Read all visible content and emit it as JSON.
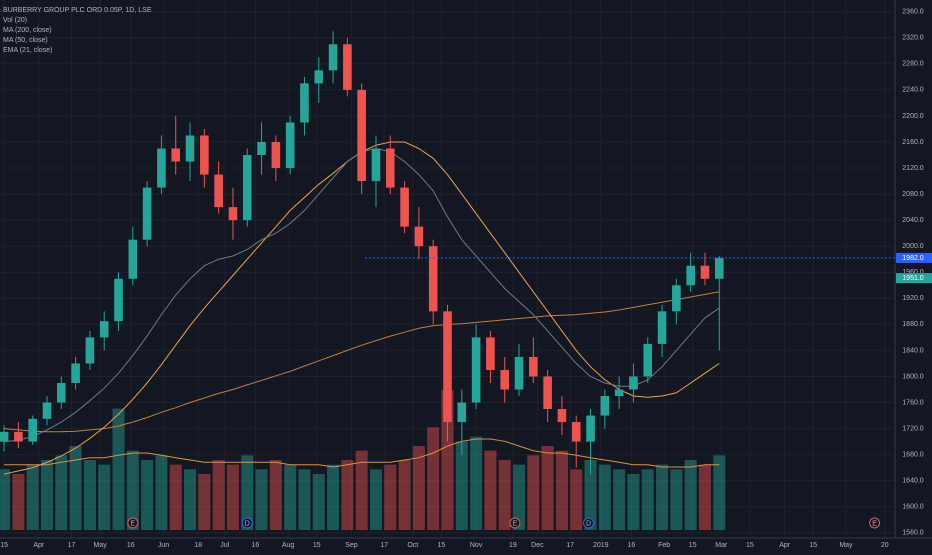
{
  "chart_data": {
    "type": "candlestick",
    "title": "BURBERRY GROUP PLC ORD 0.05P, 1D, LSE",
    "x": [
      "2018-03-15",
      "2018-03-22",
      "2018-03-29",
      "2018-04-05",
      "2018-04-12",
      "2018-04-19",
      "2018-04-26",
      "2018-05-03",
      "2018-05-10",
      "2018-05-17",
      "2018-05-24",
      "2018-05-31",
      "2018-06-07",
      "2018-06-14",
      "2018-06-21",
      "2018-06-28",
      "2018-07-05",
      "2018-07-12",
      "2018-07-19",
      "2018-07-26",
      "2018-08-02",
      "2018-08-09",
      "2018-08-16",
      "2018-08-23",
      "2018-08-30",
      "2018-09-06",
      "2018-09-13",
      "2018-09-20",
      "2018-09-27",
      "2018-10-04",
      "2018-10-11",
      "2018-10-18",
      "2018-10-25",
      "2018-11-01",
      "2018-11-08",
      "2018-11-15",
      "2018-11-22",
      "2018-11-29",
      "2018-12-06",
      "2018-12-13",
      "2018-12-20",
      "2018-12-27",
      "2019-01-03",
      "2019-01-10",
      "2019-01-17",
      "2019-01-24",
      "2019-01-31",
      "2019-02-07",
      "2019-02-14",
      "2019-02-21",
      "2019-02-28"
    ],
    "open": [
      1700,
      1715,
      1700,
      1735,
      1760,
      1790,
      1820,
      1860,
      1885,
      1950,
      2010,
      2090,
      2150,
      2130,
      2170,
      2110,
      2060,
      2040,
      2140,
      2160,
      2120,
      2190,
      2250,
      2270,
      2310,
      2240,
      2100,
      2150,
      2090,
      2030,
      2000,
      1900,
      1730,
      1760,
      1860,
      1810,
      1780,
      1830,
      1800,
      1750,
      1730,
      1700,
      1740,
      1770,
      1780,
      1800,
      1850,
      1900,
      1940,
      1970,
      1950
    ],
    "high": [
      1725,
      1730,
      1740,
      1770,
      1800,
      1830,
      1870,
      1900,
      1960,
      2030,
      2100,
      2170,
      2200,
      2190,
      2180,
      2130,
      2090,
      2150,
      2190,
      2170,
      2200,
      2260,
      2290,
      2330,
      2320,
      2250,
      2170,
      2170,
      2100,
      2060,
      2010,
      1910,
      1780,
      1880,
      1870,
      1830,
      1850,
      1860,
      1810,
      1770,
      1740,
      1750,
      1780,
      1800,
      1820,
      1860,
      1910,
      1950,
      1990,
      1990,
      1985
    ],
    "low": [
      1685,
      1690,
      1695,
      1725,
      1750,
      1780,
      1810,
      1840,
      1870,
      1940,
      2000,
      2080,
      2110,
      2100,
      2090,
      2050,
      2010,
      2030,
      2110,
      2100,
      2110,
      2170,
      2220,
      2250,
      2230,
      2080,
      2060,
      2080,
      2020,
      1980,
      1880,
      1700,
      1680,
      1750,
      1790,
      1760,
      1770,
      1790,
      1730,
      1710,
      1660,
      1650,
      1720,
      1750,
      1760,
      1790,
      1830,
      1880,
      1930,
      1940,
      1840
    ],
    "close": [
      1715,
      1700,
      1735,
      1760,
      1790,
      1820,
      1860,
      1885,
      1950,
      2010,
      2090,
      2150,
      2130,
      2170,
      2110,
      2060,
      2040,
      2140,
      2160,
      2120,
      2190,
      2250,
      2270,
      2310,
      2240,
      2100,
      2150,
      2090,
      2030,
      2000,
      1900,
      1730,
      1760,
      1860,
      1810,
      1780,
      1830,
      1800,
      1750,
      1730,
      1700,
      1740,
      1770,
      1780,
      1800,
      1850,
      1900,
      1940,
      1970,
      1950,
      1982
    ],
    "up_color": "#26a69a",
    "down_color": "#ef5350",
    "volume": {
      "name": "Vol (20)",
      "values": [
        1.3,
        1.2,
        1.4,
        1.5,
        1.6,
        1.8,
        1.5,
        1.4,
        2.6,
        1.7,
        1.5,
        1.6,
        1.4,
        1.3,
        1.2,
        1.5,
        1.4,
        1.6,
        1.3,
        1.5,
        1.4,
        1.3,
        1.2,
        1.4,
        1.5,
        1.7,
        1.3,
        1.4,
        1.5,
        1.8,
        2.2,
        3.0,
        1.9,
        2.0,
        1.7,
        1.5,
        1.4,
        1.6,
        1.8,
        1.7,
        1.3,
        1.5,
        1.4,
        1.3,
        1.2,
        1.3,
        1.4,
        1.3,
        1.5,
        1.4,
        1.6
      ],
      "ma_values": [
        1.4,
        1.4,
        1.4,
        1.4,
        1.45,
        1.5,
        1.55,
        1.55,
        1.6,
        1.65,
        1.65,
        1.6,
        1.55,
        1.5,
        1.45,
        1.45,
        1.45,
        1.45,
        1.45,
        1.45,
        1.4,
        1.4,
        1.4,
        1.35,
        1.4,
        1.45,
        1.45,
        1.45,
        1.5,
        1.55,
        1.65,
        1.8,
        1.9,
        1.95,
        1.95,
        1.9,
        1.8,
        1.7,
        1.65,
        1.65,
        1.6,
        1.55,
        1.5,
        1.45,
        1.4,
        1.4,
        1.35,
        1.35,
        1.35,
        1.4,
        1.4
      ],
      "ma_color": "#e0913e"
    },
    "series": [
      {
        "name": "MA (200, close)",
        "color": "#c77c3a",
        "values": [
          1720,
          1718,
          1716,
          1715,
          1715,
          1716,
          1718,
          1720,
          1724,
          1730,
          1737,
          1745,
          1752,
          1760,
          1767,
          1774,
          1780,
          1787,
          1794,
          1801,
          1808,
          1816,
          1824,
          1832,
          1840,
          1848,
          1855,
          1862,
          1868,
          1874,
          1878,
          1880,
          1881,
          1883,
          1885,
          1887,
          1889,
          1891,
          1893,
          1894,
          1895,
          1897,
          1899,
          1902,
          1906,
          1910,
          1914,
          1918,
          1922,
          1926,
          1930
        ]
      },
      {
        "name": "MA (50, close)",
        "color": "#f0a050",
        "values": [
          1650,
          1655,
          1660,
          1668,
          1678,
          1690,
          1705,
          1722,
          1742,
          1765,
          1790,
          1818,
          1848,
          1878,
          1905,
          1930,
          1955,
          1980,
          2005,
          2030,
          2055,
          2075,
          2095,
          2112,
          2130,
          2145,
          2155,
          2160,
          2160,
          2150,
          2135,
          2110,
          2080,
          2050,
          2020,
          1990,
          1960,
          1930,
          1900,
          1870,
          1840,
          1815,
          1795,
          1780,
          1770,
          1768,
          1770,
          1775,
          1790,
          1805,
          1820
        ]
      },
      {
        "name": "EMA (21, close)",
        "color": "#6d7a8c",
        "values": [
          1700,
          1702,
          1708,
          1718,
          1730,
          1745,
          1763,
          1782,
          1805,
          1832,
          1862,
          1895,
          1925,
          1950,
          1970,
          1980,
          1985,
          1995,
          2010,
          2020,
          2035,
          2055,
          2080,
          2105,
          2130,
          2145,
          2150,
          2145,
          2130,
          2110,
          2085,
          2045,
          2010,
          1985,
          1960,
          1935,
          1915,
          1895,
          1870,
          1845,
          1820,
          1800,
          1790,
          1785,
          1785,
          1795,
          1815,
          1840,
          1865,
          1890,
          1905
        ]
      }
    ],
    "ylim": [
      1552,
      2378
    ],
    "yticks": [
      {
        "value": 2360,
        "label": "2360.0"
      },
      {
        "value": 2320,
        "label": "2320.0"
      },
      {
        "value": 2280,
        "label": "2280.0"
      },
      {
        "value": 2240,
        "label": "2240.0"
      },
      {
        "value": 2200,
        "label": "2200.0"
      },
      {
        "value": 2160,
        "label": "2160.0"
      },
      {
        "value": 2120,
        "label": "2120.0"
      },
      {
        "value": 2080,
        "label": "2080.0"
      },
      {
        "value": 2040,
        "label": "2040.0"
      },
      {
        "value": 2000,
        "label": "2000.0"
      },
      {
        "value": 1960,
        "label": "1960.0"
      },
      {
        "value": 1920,
        "label": "1920.0"
      },
      {
        "value": 1880,
        "label": "1880.0"
      },
      {
        "value": 1840,
        "label": "1840.0"
      },
      {
        "value": 1800,
        "label": "1800.0"
      },
      {
        "value": 1760,
        "label": "1760.0"
      },
      {
        "value": 1720,
        "label": "1720.0"
      },
      {
        "value": 1680,
        "label": "1680.0"
      },
      {
        "value": 1640,
        "label": "1640.0"
      },
      {
        "value": 1600,
        "label": "1600.0"
      },
      {
        "value": 1560,
        "label": "1560.0"
      }
    ],
    "xlim": [
      "2018-03-13",
      "2019-05-25"
    ],
    "xticks": [
      {
        "value": "2018-03-15",
        "label": "15"
      },
      {
        "value": "2018-04-01",
        "label": "Apr"
      },
      {
        "value": "2018-04-17",
        "label": "17"
      },
      {
        "value": "2018-05-01",
        "label": "May"
      },
      {
        "value": "2018-05-16",
        "label": "16"
      },
      {
        "value": "2018-06-01",
        "label": "Jun"
      },
      {
        "value": "2018-06-18",
        "label": "18"
      },
      {
        "value": "2018-07-01",
        "label": "Jul"
      },
      {
        "value": "2018-07-16",
        "label": "16"
      },
      {
        "value": "2018-08-01",
        "label": "Aug"
      },
      {
        "value": "2018-08-15",
        "label": "15"
      },
      {
        "value": "2018-09-01",
        "label": "Sep"
      },
      {
        "value": "2018-09-17",
        "label": "17"
      },
      {
        "value": "2018-10-01",
        "label": "Oct"
      },
      {
        "value": "2018-10-15",
        "label": "15"
      },
      {
        "value": "2018-11-01",
        "label": "Nov"
      },
      {
        "value": "2018-11-19",
        "label": "19"
      },
      {
        "value": "2018-12-01",
        "label": "Dec"
      },
      {
        "value": "2018-12-17",
        "label": "17"
      },
      {
        "value": "2019-01-01",
        "label": "2019"
      },
      {
        "value": "2019-01-16",
        "label": "16"
      },
      {
        "value": "2019-02-01",
        "label": "Feb"
      },
      {
        "value": "2019-02-15",
        "label": "15"
      },
      {
        "value": "2019-03-01",
        "label": "Mar"
      },
      {
        "value": "2019-03-15",
        "label": "15"
      },
      {
        "value": "2019-04-01",
        "label": "Apr"
      },
      {
        "value": "2019-04-15",
        "label": "15"
      },
      {
        "value": "2019-05-01",
        "label": "May"
      },
      {
        "value": "2019-05-20",
        "label": "20"
      }
    ],
    "grid": true,
    "last_price": {
      "value": 1982,
      "label": "1982.0",
      "color": "#2962ff"
    },
    "ma_price": {
      "value": 1951,
      "label": "1951.0",
      "color": "#26a69a"
    },
    "events": [
      {
        "date": "2018-05-17",
        "label": "E"
      },
      {
        "date": "2018-07-12",
        "label": "D"
      },
      {
        "date": "2018-11-20",
        "label": "E"
      },
      {
        "date": "2018-12-26",
        "label": "D"
      },
      {
        "date": "2019-05-15",
        "label": "E"
      }
    ]
  }
}
